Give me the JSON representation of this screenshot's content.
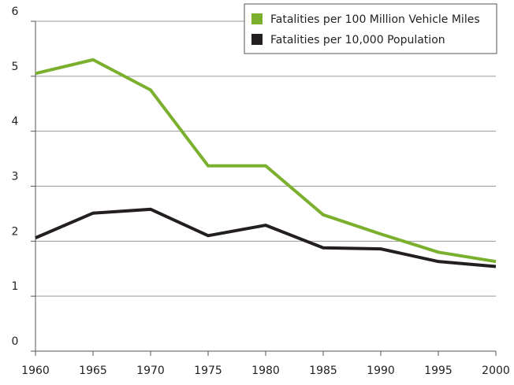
{
  "chart_data": {
    "type": "line",
    "x": [
      1960,
      1965,
      1970,
      1975,
      1980,
      1985,
      1990,
      1995,
      2000
    ],
    "series": [
      {
        "name": "Fatalities per 100 Million Vehicle Miles",
        "color": "#7ab02e",
        "values": [
          5.05,
          5.3,
          4.75,
          3.37,
          3.37,
          2.48,
          2.13,
          1.8,
          1.63
        ]
      },
      {
        "name": "Fatalities per 10,000 Population",
        "color": "#231f20",
        "values": [
          2.06,
          2.51,
          2.58,
          2.1,
          2.29,
          1.88,
          1.86,
          1.63,
          1.54
        ]
      }
    ],
    "xlim": [
      1960,
      2000
    ],
    "xticks": [
      1960,
      1965,
      1970,
      1975,
      1980,
      1985,
      1990,
      1995,
      2000
    ],
    "ylim": [
      0,
      6
    ],
    "yticks": [
      0,
      1,
      2,
      3,
      4,
      5,
      6
    ],
    "grid": true,
    "legend": "upper right"
  }
}
